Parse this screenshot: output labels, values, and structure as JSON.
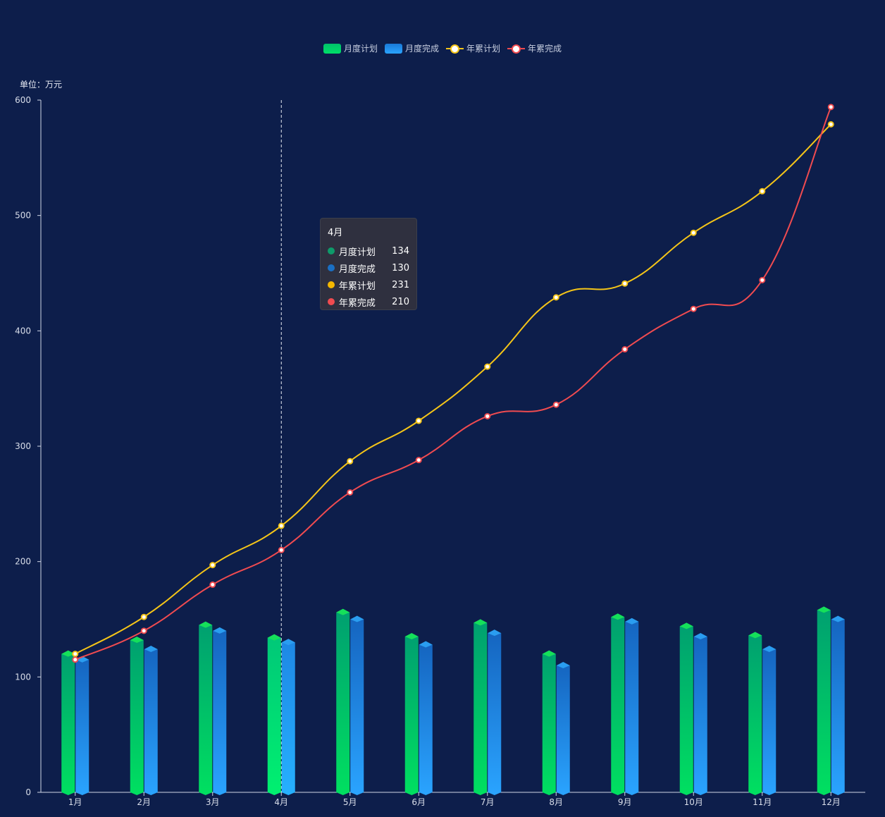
{
  "colors": {
    "background": "#0d1e4b",
    "plan_bar_top": "#00a070",
    "plan_bar_bottom": "#00e060",
    "done_bar_top": "#1565c0",
    "done_bar_bottom": "#2aa4ff",
    "plan_line": "#f5c518",
    "done_line": "#f04b50"
  },
  "chart_data": {
    "type": "bar",
    "title": "",
    "unit_label": "单位：万元",
    "categories": [
      "1月",
      "2月",
      "3月",
      "4月",
      "5月",
      "6月",
      "7月",
      "8月",
      "9月",
      "10月",
      "11月",
      "12月"
    ],
    "ylim": [
      0,
      600
    ],
    "yticks": [
      0,
      100,
      200,
      300,
      400,
      500,
      600
    ],
    "legend": [
      "月度计划",
      "月度完成",
      "年累计划",
      "年累完成"
    ],
    "series": [
      {
        "name": "月度计划",
        "type": "bar",
        "values": [
          120,
          132,
          145,
          134,
          156,
          135,
          147,
          120,
          152,
          144,
          136,
          158
        ]
      },
      {
        "name": "月度完成",
        "type": "bar",
        "values": [
          115,
          124,
          140,
          130,
          150,
          128,
          138,
          110,
          148,
          135,
          124,
          150
        ]
      },
      {
        "name": "年累计划",
        "type": "line",
        "values": [
          120,
          152,
          197,
          231,
          287,
          322,
          369,
          429,
          441,
          485,
          521,
          579
        ]
      },
      {
        "name": "年累完成",
        "type": "line",
        "values": [
          115,
          140,
          180,
          210,
          260,
          288,
          326,
          336,
          384,
          419,
          444,
          594
        ]
      }
    ],
    "highlight_index": 3
  },
  "tooltip": {
    "title": "4月",
    "rows": [
      {
        "name": "月度计划",
        "value": "134",
        "color": "#0e9a6a"
      },
      {
        "name": "月度完成",
        "value": "130",
        "color": "#1a6fc4"
      },
      {
        "name": "年累计划",
        "value": "231",
        "color": "#f5b800"
      },
      {
        "name": "年累完成",
        "value": "210",
        "color": "#f04b50"
      }
    ]
  }
}
